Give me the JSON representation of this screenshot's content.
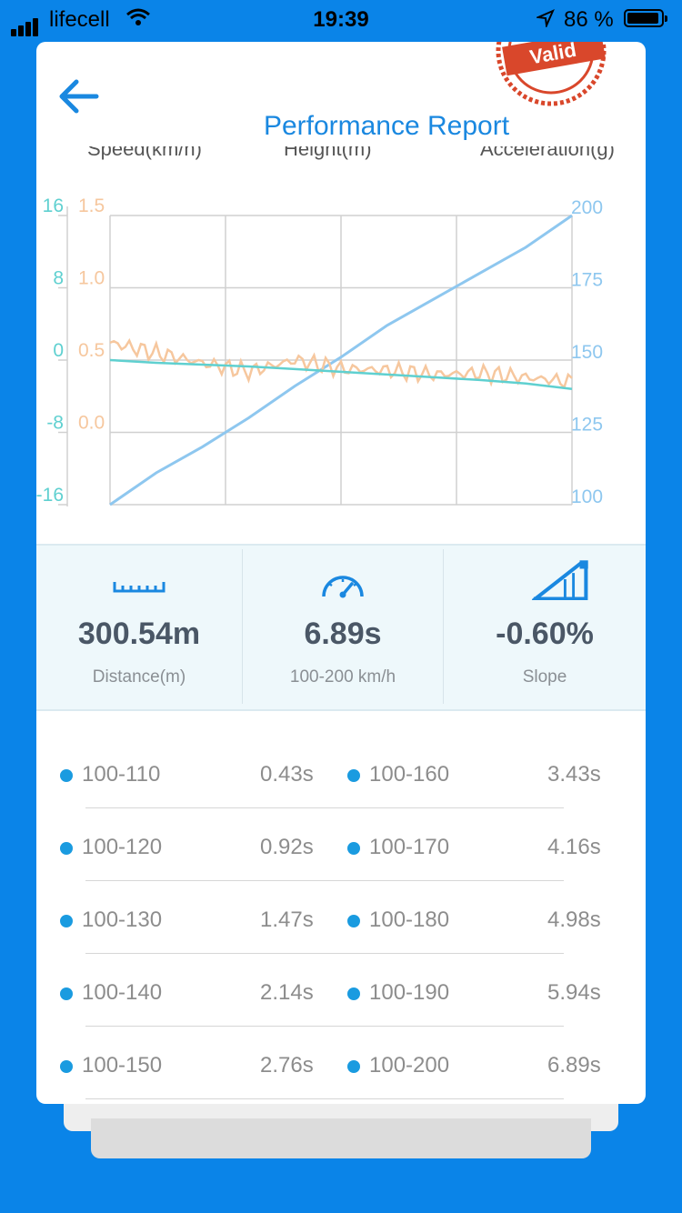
{
  "status_bar": {
    "carrier": "lifecell",
    "time": "19:39",
    "battery": "86 %"
  },
  "header": {
    "title": "Performance Report",
    "stamp_text": "Valid"
  },
  "chart": {
    "top_labels": [
      "Speed(km/h)",
      "Height(m)",
      "Acceleration(g)"
    ],
    "accel_ticks": [
      "16",
      "8",
      "0",
      "-8",
      "-16"
    ],
    "height_ticks": [
      "1.5",
      "1.0",
      "0.5",
      "0.0"
    ],
    "speed_ticks": [
      "200",
      "175",
      "150",
      "125",
      "100"
    ],
    "colors": {
      "speed": "#8ec7ef",
      "height": "#f6c79e",
      "accel": "#5fd0d0",
      "grid": "#d0d0d0"
    }
  },
  "chart_data": {
    "type": "line",
    "x": [
      0,
      1,
      2,
      3,
      4,
      5,
      6,
      7,
      8,
      9,
      10
    ],
    "series": [
      {
        "name": "Speed(km/h)",
        "axis": "right",
        "values": [
          100,
          111,
          120,
          130,
          141,
          151,
          162,
          171,
          180,
          189,
          200
        ]
      },
      {
        "name": "Height(m)",
        "axis": "left-inner",
        "values": [
          0.62,
          0.55,
          0.48,
          0.42,
          0.5,
          0.44,
          0.43,
          0.4,
          0.41,
          0.38,
          0.35
        ]
      },
      {
        "name": "Acceleration(g)",
        "axis": "left-outer",
        "values": [
          0,
          -0.3,
          -0.5,
          -0.7,
          -1.0,
          -1.3,
          -1.6,
          -1.9,
          -2.2,
          -2.6,
          -3.2
        ]
      }
    ],
    "ylim_right": [
      100,
      200
    ],
    "ylim_left_inner": [
      -0.5,
      1.5
    ],
    "ylim_left_outer": [
      -16,
      16
    ],
    "grid": true
  },
  "stats": [
    {
      "icon": "ruler-icon",
      "value": "300.54m",
      "label": "Distance(m)"
    },
    {
      "icon": "speedometer-icon",
      "value": "6.89s",
      "label": "100-200 km/h"
    },
    {
      "icon": "slope-icon",
      "value": "-0.60%",
      "label": "Slope"
    }
  ],
  "splits": [
    {
      "left": {
        "range": "100-110",
        "time": "0.43s"
      },
      "right": {
        "range": "100-160",
        "time": "3.43s"
      }
    },
    {
      "left": {
        "range": "100-120",
        "time": "0.92s"
      },
      "right": {
        "range": "100-170",
        "time": "4.16s"
      }
    },
    {
      "left": {
        "range": "100-130",
        "time": "1.47s"
      },
      "right": {
        "range": "100-180",
        "time": "4.98s"
      }
    },
    {
      "left": {
        "range": "100-140",
        "time": "2.14s"
      },
      "right": {
        "range": "100-190",
        "time": "5.94s"
      }
    },
    {
      "left": {
        "range": "100-150",
        "time": "2.76s"
      },
      "right": {
        "range": "100-200",
        "time": "6.89s"
      }
    }
  ]
}
